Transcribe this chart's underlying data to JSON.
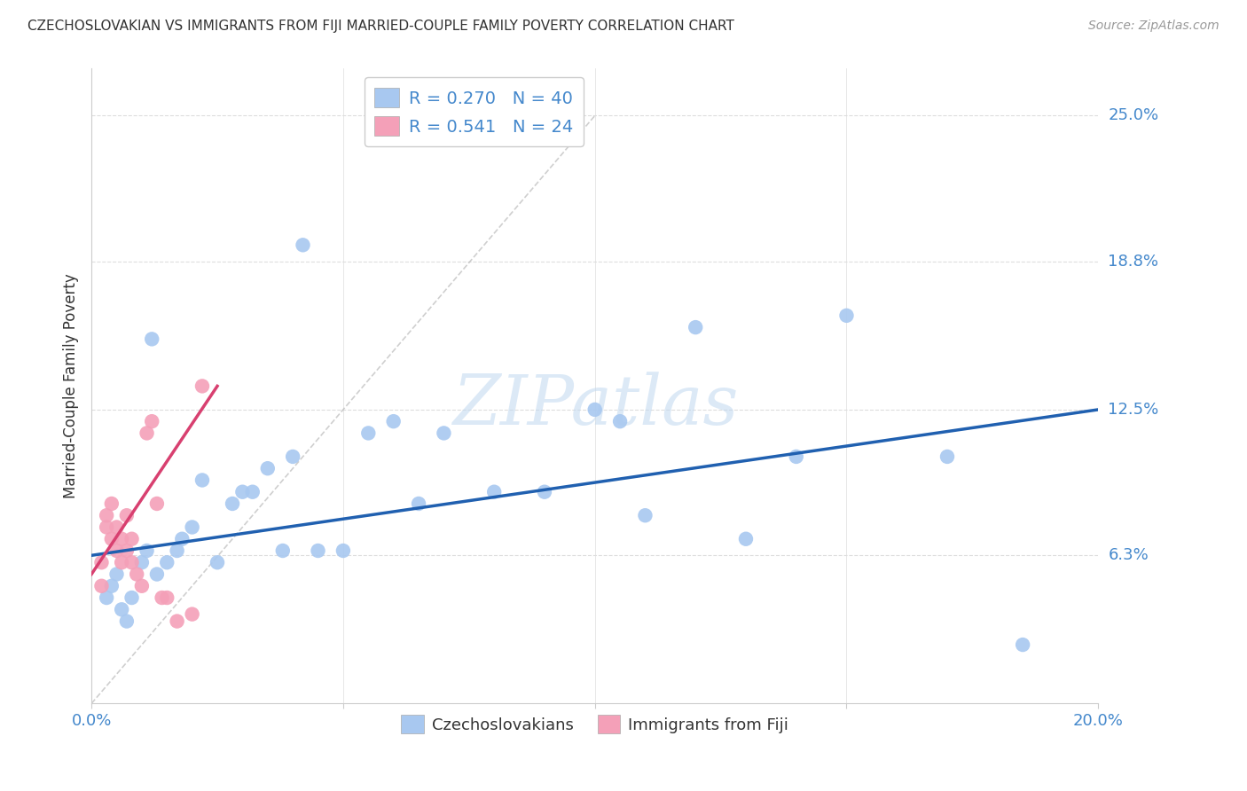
{
  "title": "CZECHOSLOVAKIAN VS IMMIGRANTS FROM FIJI MARRIED-COUPLE FAMILY POVERTY CORRELATION CHART",
  "source": "Source: ZipAtlas.com",
  "ylabel": "Married-Couple Family Poverty",
  "xlim": [
    0.0,
    20.0
  ],
  "ylim": [
    0.0,
    27.0
  ],
  "ytick_vals": [
    6.3,
    12.5,
    18.8,
    25.0
  ],
  "ytick_labels": [
    "6.3%",
    "12.5%",
    "18.8%",
    "25.0%"
  ],
  "xtick_vals": [
    0.0,
    5.0,
    10.0,
    15.0,
    20.0
  ],
  "xtick_show_labels": [
    "0.0%",
    "",
    "",
    "",
    "20.0%"
  ],
  "blue_color": "#A8C8F0",
  "pink_color": "#F4A0B8",
  "blue_line_color": "#2060B0",
  "pink_line_color": "#D84070",
  "axis_label_color": "#4488CC",
  "text_color": "#333333",
  "source_color": "#999999",
  "grid_color": "#DDDDDD",
  "bg_color": "#FFFFFF",
  "watermark": "ZIPatlas",
  "watermark_color": "#C0D8F0",
  "legend_r_blue": "R = 0.270",
  "legend_n_blue": "N = 40",
  "legend_r_pink": "R = 0.541",
  "legend_n_pink": "N = 24",
  "legend_label_blue": "Czechoslovakians",
  "legend_label_pink": "Immigrants from Fiji",
  "blue_x": [
    0.3,
    0.5,
    0.6,
    0.8,
    1.0,
    1.1,
    1.3,
    1.5,
    1.7,
    1.8,
    2.0,
    2.2,
    2.5,
    2.8,
    3.0,
    3.5,
    4.0,
    4.5,
    5.0,
    5.5,
    6.0,
    6.5,
    7.0,
    8.0,
    9.0,
    10.0,
    10.5,
    11.0,
    12.0,
    13.0,
    14.0,
    15.0,
    17.0,
    18.5,
    0.4,
    0.7,
    1.2,
    3.2,
    3.8,
    4.2
  ],
  "blue_y": [
    4.5,
    5.5,
    4.0,
    4.5,
    6.0,
    6.5,
    5.5,
    6.0,
    6.5,
    7.0,
    7.5,
    9.5,
    6.0,
    8.5,
    9.0,
    10.0,
    10.5,
    6.5,
    6.5,
    11.5,
    12.0,
    8.5,
    11.5,
    9.0,
    9.0,
    12.5,
    12.0,
    8.0,
    16.0,
    7.0,
    10.5,
    16.5,
    10.5,
    2.5,
    5.0,
    3.5,
    15.5,
    9.0,
    6.5,
    19.5
  ],
  "pink_x": [
    0.2,
    0.2,
    0.3,
    0.3,
    0.4,
    0.4,
    0.5,
    0.5,
    0.6,
    0.6,
    0.7,
    0.7,
    0.8,
    0.8,
    0.9,
    1.0,
    1.1,
    1.2,
    1.3,
    1.4,
    1.5,
    1.7,
    2.0,
    2.2
  ],
  "pink_y": [
    6.0,
    5.0,
    7.5,
    8.0,
    7.0,
    8.5,
    6.5,
    7.5,
    6.0,
    7.0,
    6.5,
    8.0,
    6.0,
    7.0,
    5.5,
    5.0,
    11.5,
    12.0,
    8.5,
    4.5,
    4.5,
    3.5,
    3.8,
    13.5
  ],
  "pink_line_x0": 0.0,
  "pink_line_x1": 2.5,
  "blue_line_y0": 6.3,
  "blue_line_y1": 12.5
}
